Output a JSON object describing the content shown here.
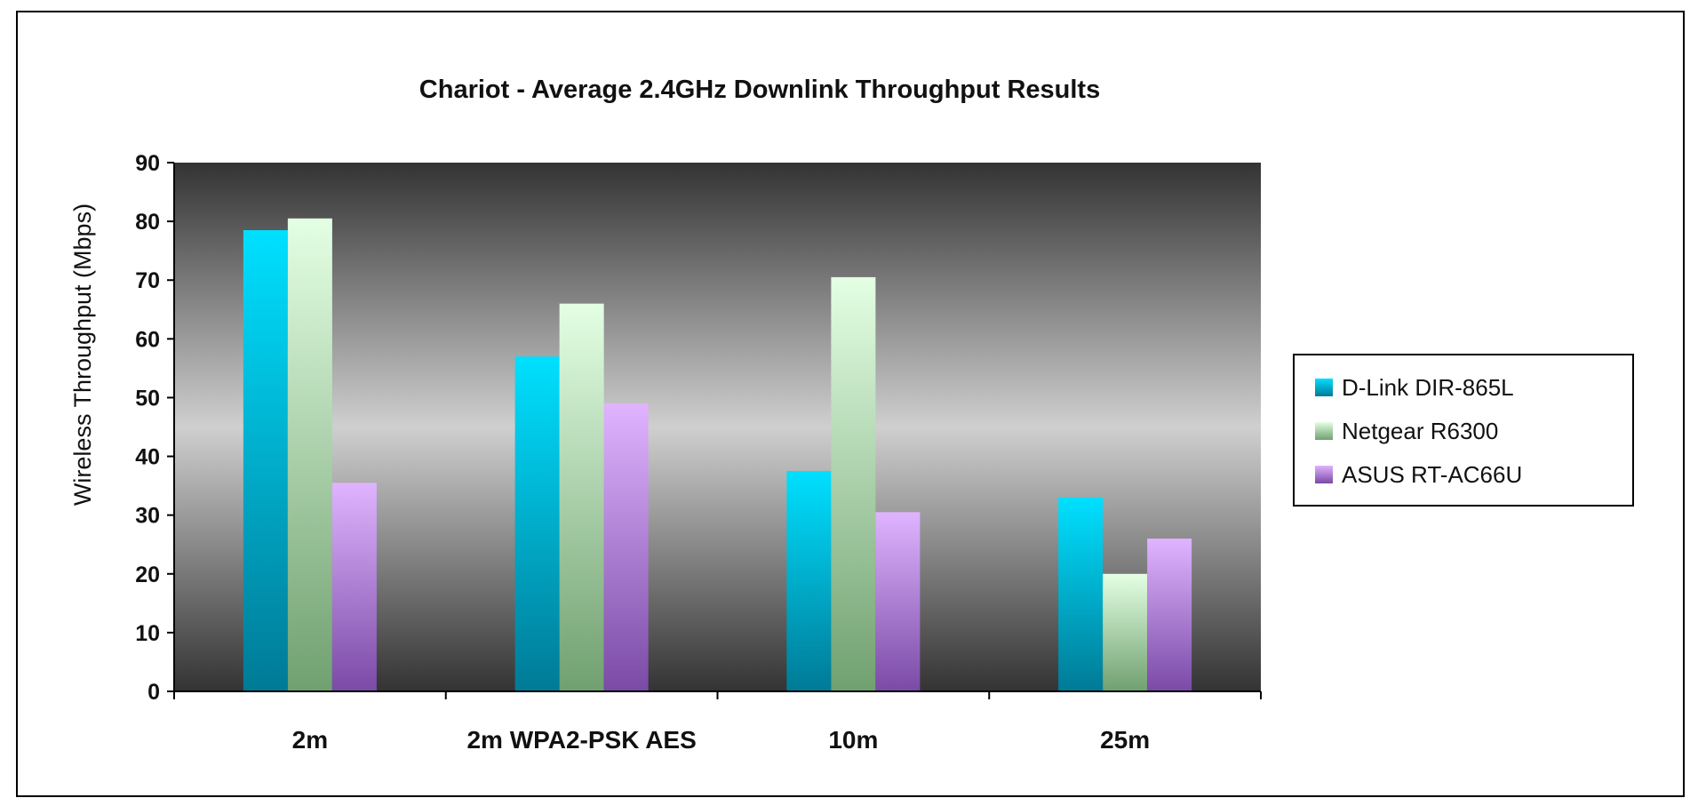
{
  "chart_data": {
    "type": "bar",
    "title": "Chariot - Average 2.4GHz Downlink Throughput Results",
    "xlabel": "",
    "ylabel": "Wireless Throughput (Mbps)",
    "ylim": [
      0,
      90
    ],
    "yticks": [
      "0",
      "10",
      "20",
      "30",
      "40",
      "50",
      "60",
      "70",
      "80",
      "90"
    ],
    "categories": [
      "2m",
      "2m WPA2-PSK AES",
      "10m",
      "25m"
    ],
    "series": [
      {
        "name": "D-Link DIR-865L",
        "values": [
          78.5,
          57,
          37.5,
          33
        ],
        "color_top": "#00e0ff",
        "color_bottom": "#007a96"
      },
      {
        "name": "Netgear R6300",
        "values": [
          80.5,
          66,
          70.5,
          20
        ],
        "color_top": "#e4ffe4",
        "color_bottom": "#70a070"
      },
      {
        "name": "ASUS RT-AC66U",
        "values": [
          35.5,
          49,
          30.5,
          26
        ],
        "color_top": "#e0b4ff",
        "color_bottom": "#7a4aa6"
      }
    ],
    "grid": false,
    "legend_position": "right",
    "plot_background": [
      "#333333",
      "#cfcfcf",
      "#333333"
    ]
  }
}
